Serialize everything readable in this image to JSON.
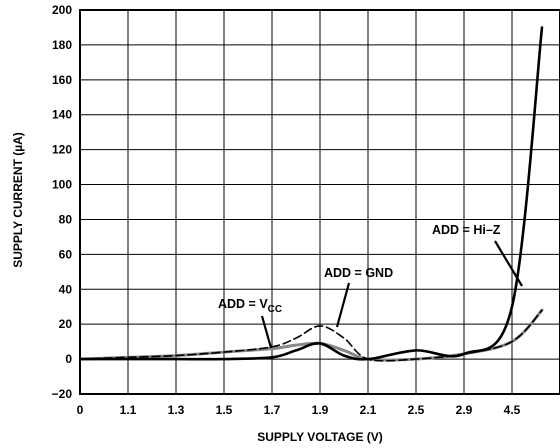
{
  "chart_data": {
    "type": "line",
    "xlabel": "SUPPLY VOLTAGE (V)",
    "ylabel": "SUPPLY CURRENT (µA)",
    "ylim": [
      -20,
      200
    ],
    "x_tick_labels": [
      "0",
      "1.1",
      "1.3",
      "1.5",
      "1.7",
      "1.9",
      "2.1",
      "2.5",
      "2.9",
      "4.5"
    ],
    "y_tick_labels": [
      "−20",
      "0",
      "20",
      "40",
      "60",
      "80",
      "100",
      "120",
      "140",
      "160",
      "180",
      "200"
    ],
    "y_ticks": [
      -20,
      0,
      20,
      40,
      60,
      80,
      100,
      120,
      140,
      160,
      180,
      200
    ],
    "grid": true,
    "series": [
      {
        "name": "ADD = VCC",
        "color": "#000000",
        "style": "dashed",
        "x": [
          0,
          1.1,
          1.3,
          1.5,
          1.7,
          1.8,
          1.9,
          2.0,
          2.1,
          2.5,
          2.9,
          4.5,
          5.5
        ],
        "y": [
          0,
          1,
          2,
          4,
          7,
          12,
          19,
          12,
          0,
          0,
          3,
          10,
          28
        ]
      },
      {
        "name": "ADD = GND",
        "color": "#888888",
        "style": "solid",
        "x": [
          0,
          1.1,
          1.3,
          1.5,
          1.7,
          1.8,
          1.9,
          2.0,
          2.1,
          2.5,
          2.9,
          4.5,
          5.5
        ],
        "y": [
          0,
          1,
          2,
          4,
          6,
          8,
          9,
          5,
          0,
          0,
          3,
          10,
          28
        ]
      },
      {
        "name": "ADD = Hi–Z",
        "color": "#000000",
        "style": "solid",
        "x": [
          0,
          1.1,
          1.3,
          1.5,
          1.7,
          1.8,
          1.9,
          2.0,
          2.1,
          2.5,
          2.9,
          4.5,
          5.5
        ],
        "y": [
          0,
          0,
          0,
          0,
          1,
          5,
          9,
          2,
          0,
          5,
          3,
          30,
          190
        ]
      }
    ],
    "annotations": {
      "vcc_main": "ADD = V",
      "vcc_sub": "CC",
      "gnd": "ADD = GND",
      "hiz": "ADD = Hi–Z"
    }
  }
}
